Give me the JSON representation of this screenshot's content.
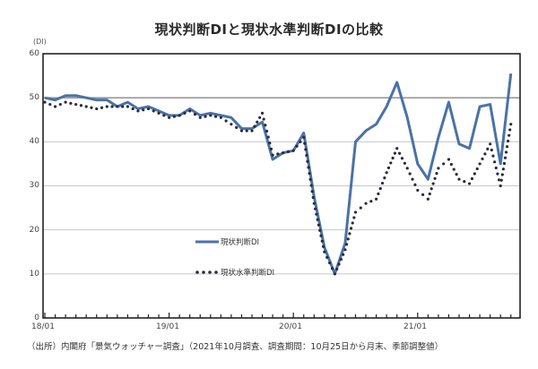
{
  "chart_data": {
    "type": "line",
    "title": "現状判断DIと現状水準判断DIの比較",
    "ylabel": "(DI)",
    "xlabel": "",
    "ylim": [
      0,
      60
    ],
    "yticks": [
      0,
      10,
      20,
      30,
      40,
      50,
      60
    ],
    "xtick_labels": [
      "18/01",
      "19/01",
      "20/01",
      "21/01"
    ],
    "grid": "horizontal",
    "reference_line": 50,
    "legend_position": "inside-lower-left",
    "x": [
      "18/01",
      "18/02",
      "18/03",
      "18/04",
      "18/05",
      "18/06",
      "18/07",
      "18/08",
      "18/09",
      "18/10",
      "18/11",
      "18/12",
      "19/01",
      "19/02",
      "19/03",
      "19/04",
      "19/05",
      "19/06",
      "19/07",
      "19/08",
      "19/09",
      "19/10",
      "19/11",
      "19/12",
      "20/01",
      "20/02",
      "20/03",
      "20/04",
      "20/05",
      "20/06",
      "20/07",
      "20/08",
      "20/09",
      "20/10",
      "20/11",
      "20/12",
      "21/01",
      "21/02",
      "21/03",
      "21/04",
      "21/05",
      "21/06",
      "21/07",
      "21/08",
      "21/09",
      "21/10"
    ],
    "series": [
      {
        "name": "現状判断DI",
        "style": "solid",
        "color": "#4a72a8",
        "values": [
          50.0,
          49.5,
          50.5,
          50.5,
          50.0,
          49.5,
          49.5,
          48.0,
          49.0,
          47.5,
          48.0,
          47.0,
          46.0,
          46.0,
          47.5,
          46.0,
          46.5,
          46.0,
          45.5,
          43.0,
          43.0,
          44.5,
          36.0,
          37.5,
          38.0,
          42.0,
          27.5,
          16.0,
          10.0,
          17.0,
          40.0,
          42.5,
          44.0,
          48.0,
          53.5,
          45.5,
          35.0,
          31.5,
          41.0,
          49.0,
          39.5,
          38.5,
          48.0,
          48.5,
          35.0,
          55.5
        ]
      },
      {
        "name": "現状水準判断DI",
        "style": "dotted",
        "color": "#2b2b3a",
        "values": [
          49.0,
          48.0,
          49.0,
          48.5,
          48.0,
          47.5,
          48.0,
          48.0,
          48.0,
          47.0,
          47.5,
          46.5,
          45.5,
          46.0,
          47.0,
          45.5,
          46.0,
          45.5,
          44.0,
          42.5,
          42.5,
          46.5,
          37.0,
          37.5,
          38.0,
          41.0,
          26.0,
          15.0,
          10.0,
          15.5,
          24.0,
          26.0,
          27.0,
          33.0,
          38.5,
          34.0,
          29.0,
          27.0,
          34.0,
          36.0,
          31.5,
          30.5,
          35.0,
          39.5,
          30.0,
          44.0
        ]
      }
    ]
  },
  "header": {
    "title": "現状判断DIと現状水準判断DIの比較",
    "unit": "(DI)"
  },
  "axes": {
    "y_labels": [
      "60",
      "50",
      "40",
      "30",
      "20",
      "10",
      "0"
    ],
    "x_labels": [
      "18/01",
      "19/01",
      "20/01",
      "21/01"
    ]
  },
  "legend": {
    "solid_label": "現状判断DI",
    "dotted_label": "現状水準判断DI"
  },
  "footer": {
    "source": "（出所）内閣府「景気ウォッチャー調査」（2021年10月調査、調査期間：10月25日から月末、季節調整値）"
  },
  "colors": {
    "solid_line": "#4a72a8",
    "dotted_line": "#2b2b3a",
    "grid": "#c8c8c8",
    "ref_line": "#9a9a9a",
    "frame": "#222222"
  }
}
